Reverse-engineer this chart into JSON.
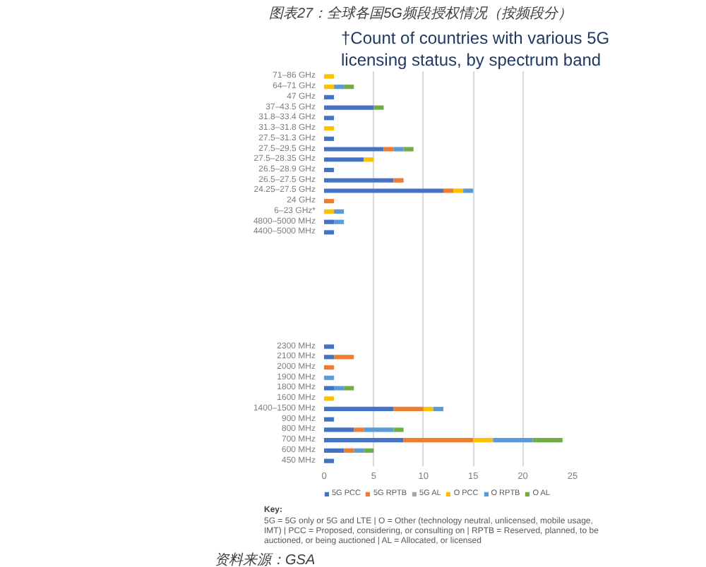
{
  "chart_data": {
    "type": "bar",
    "orientation": "horizontal",
    "stacked": true,
    "title": "图表27：全球各国5G频段授权情况（按频段分）",
    "subtitle": "†Count of countries with various 5G licensing status, by spectrum band",
    "categories": [
      "71–86 GHz",
      "64–71 GHz",
      "47 GHz",
      "37–43.5 GHz",
      "31.8–33.4 GHz",
      "31.3–31.8 GHz",
      "27.5–31.3 GHz",
      "27.5–29.5 GHz",
      "27.5–28.35 GHz",
      "26.5–28.9 GHz",
      "26.5–27.5 GHz",
      "24.25–27.5 GHz",
      "24 GHz",
      "6–23 GHz*",
      "4800–5000 MHz",
      "4400–5000 MHz",
      null,
      null,
      null,
      null,
      null,
      null,
      null,
      null,
      null,
      null,
      "2300 MHz",
      "2100 MHz",
      "2000 MHz",
      "1900 MHz",
      "1800 MHz",
      "1600 MHz",
      "1400–1500 MHz",
      "900 MHz",
      "800 MHz",
      "700 MHz",
      "600 MHz",
      "450 MHz"
    ],
    "series": [
      {
        "name": "5G PCC",
        "color": "#4472c4",
        "values": [
          0,
          0,
          1,
          5,
          1,
          0,
          1,
          6,
          4,
          1,
          7,
          12,
          0,
          0,
          1,
          1,
          null,
          null,
          null,
          null,
          null,
          null,
          null,
          null,
          null,
          null,
          1,
          1,
          0,
          0,
          1,
          0,
          7,
          1,
          3,
          8,
          2,
          1
        ]
      },
      {
        "name": "5G RPTB",
        "color": "#ed7d31",
        "values": [
          0,
          0,
          0,
          0,
          0,
          0,
          0,
          1,
          0,
          0,
          1,
          1,
          1,
          0,
          0,
          0,
          null,
          null,
          null,
          null,
          null,
          null,
          null,
          null,
          null,
          null,
          0,
          2,
          1,
          0,
          0,
          0,
          3,
          0,
          1,
          7,
          1,
          0
        ]
      },
      {
        "name": "5G AL",
        "color": "#a5a5a5",
        "values": [
          0,
          0,
          0,
          0,
          0,
          0,
          0,
          0,
          0,
          0,
          0,
          0,
          0,
          0,
          0,
          0,
          null,
          null,
          null,
          null,
          null,
          null,
          null,
          null,
          null,
          null,
          0,
          0,
          0,
          0,
          0,
          0,
          0,
          0,
          0,
          0,
          0,
          0
        ]
      },
      {
        "name": "O PCC",
        "color": "#ffc000",
        "values": [
          1,
          1,
          0,
          0,
          0,
          1,
          0,
          0,
          1,
          0,
          0,
          1,
          0,
          1,
          0,
          0,
          null,
          null,
          null,
          null,
          null,
          null,
          null,
          null,
          null,
          null,
          0,
          0,
          0,
          0,
          0,
          1,
          1,
          0,
          0,
          2,
          0,
          0
        ]
      },
      {
        "name": "O RPTB",
        "color": "#5b9bd5",
        "values": [
          0,
          1,
          0,
          0,
          0,
          0,
          0,
          1,
          0,
          0,
          0,
          1,
          0,
          1,
          1,
          0,
          null,
          null,
          null,
          null,
          null,
          null,
          null,
          null,
          null,
          null,
          0,
          0,
          0,
          1,
          1,
          0,
          1,
          0,
          3,
          4,
          1,
          0
        ]
      },
      {
        "name": "O AL",
        "color": "#70ad47",
        "values": [
          0,
          1,
          0,
          1,
          0,
          0,
          0,
          1,
          0,
          0,
          0,
          0,
          0,
          0,
          0,
          0,
          null,
          null,
          null,
          null,
          null,
          null,
          null,
          null,
          null,
          null,
          0,
          0,
          0,
          0,
          1,
          0,
          0,
          0,
          1,
          3,
          1,
          0
        ]
      }
    ],
    "xlim": [
      0,
      25
    ],
    "xticks": [
      0,
      5,
      10,
      15,
      20,
      25
    ],
    "grid": "x",
    "legend": "bottom",
    "annotations": [
      "Key:",
      "5G = 5G only or 5G and LTE | O = Other (technology neutral, unlicensed, mobile usage, IMT) | PCC = Proposed, considering, or consulting on | RPTB = Reserved, planned, to be auctioned, or being auctioned | AL = Allocated, or licensed",
      "资料来源：GSA"
    ]
  }
}
